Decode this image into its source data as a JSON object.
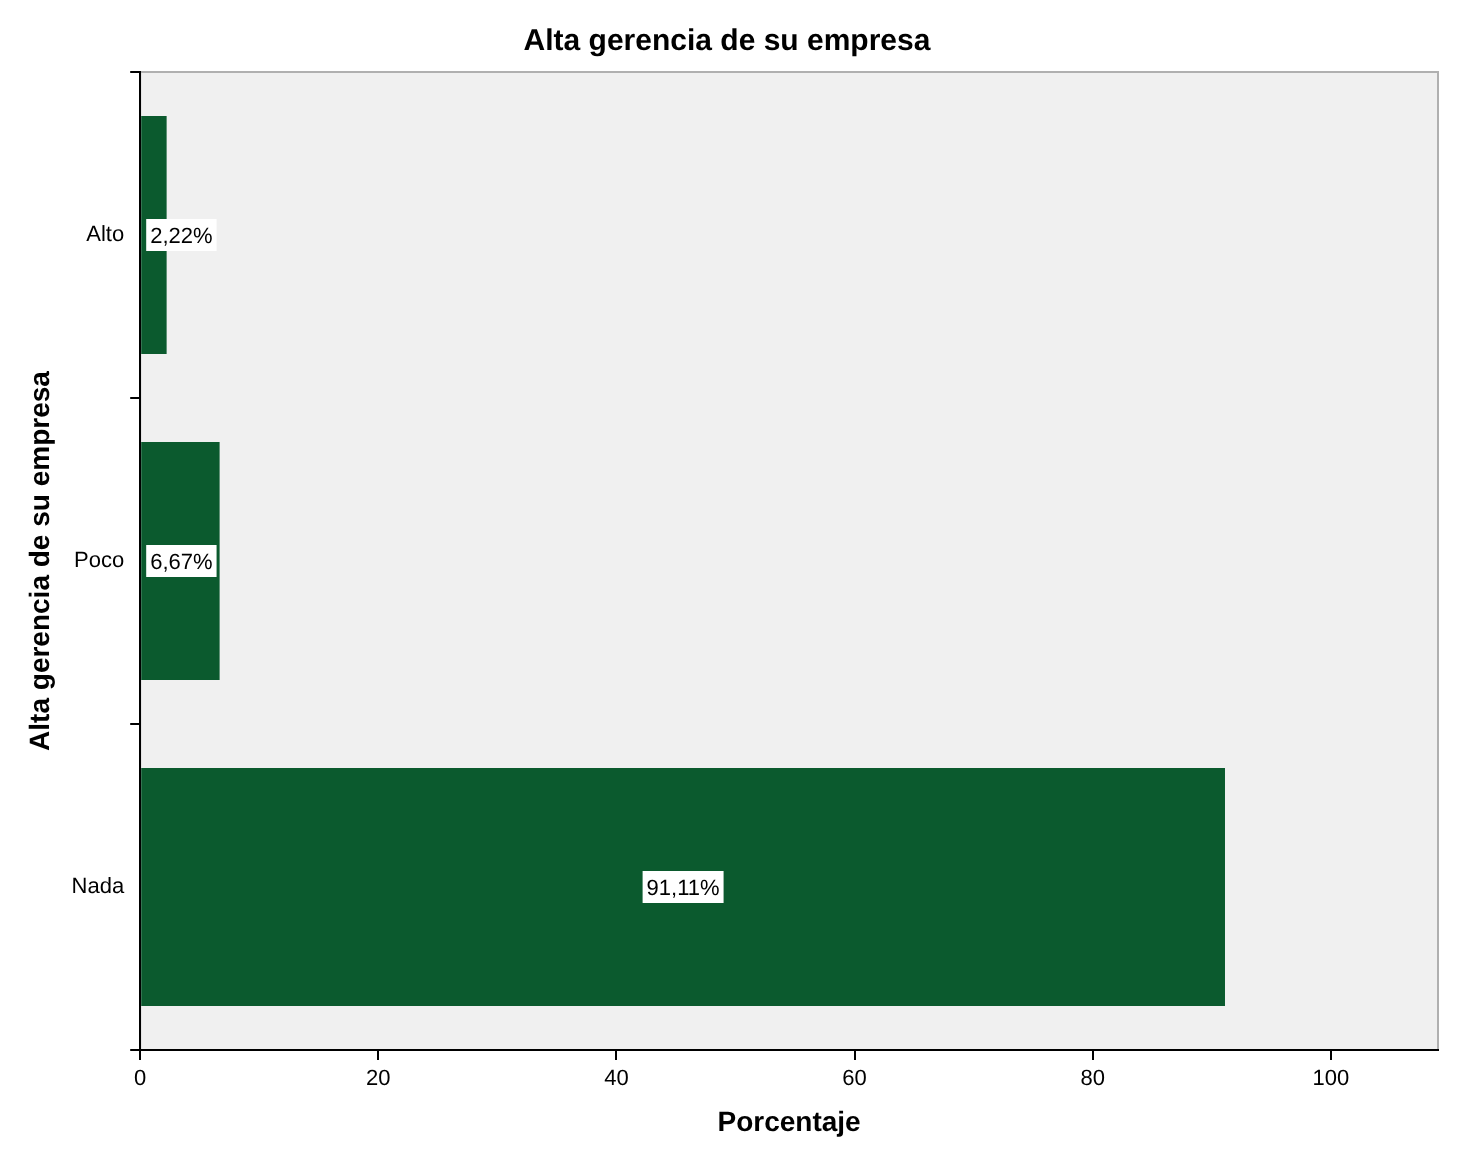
{
  "chart_data": {
    "type": "bar",
    "orientation": "horizontal",
    "title": "Alta gerencia de su empresa",
    "xlabel": "Porcentaje",
    "ylabel": "Alta gerencia de su empresa",
    "categories": [
      "Alto",
      "Poco",
      "Nada"
    ],
    "values": [
      2.22,
      6.67,
      91.11
    ],
    "color": "#0b5a2e",
    "value_labels": [
      "2,22%",
      "6,67%",
      "91,11%"
    ],
    "xlim": [
      0,
      109
    ],
    "xticks": [
      0,
      20,
      40,
      60,
      80,
      100
    ],
    "grid": false,
    "legend": false
  }
}
